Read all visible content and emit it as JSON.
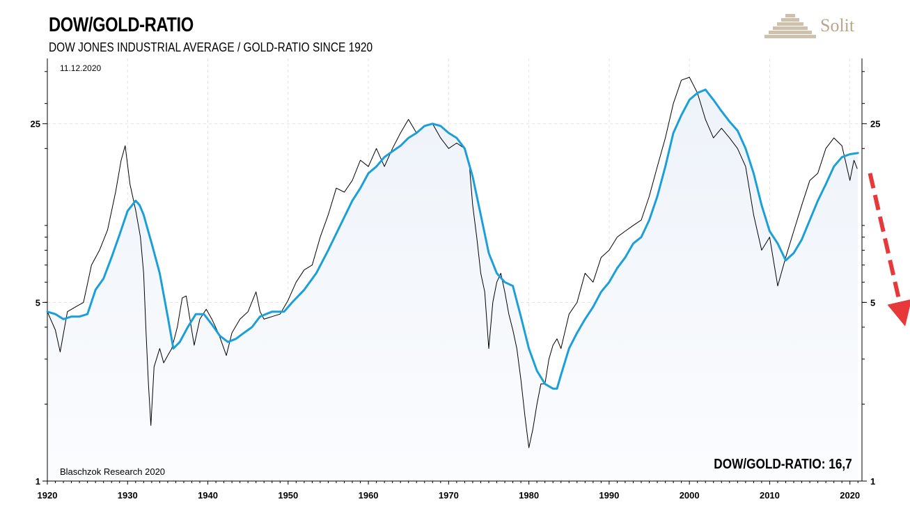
{
  "header": {
    "title": "DOW/GOLD-RATIO",
    "subtitle": "DOW JONES INDUSTRIAL AVERAGE / GOLD-RATIO SINCE 1920",
    "date": "11.12.2020"
  },
  "footer": {
    "source": "Blaschzok Research 2020",
    "readout": "DOW/GOLD-RATIO: 16,7"
  },
  "logo": {
    "text": "Solit",
    "icon": "pyramid-icon",
    "color": "#b9a78a"
  },
  "chart_data": {
    "type": "line",
    "title": "DOW/GOLD-RATIO",
    "xlabel": "",
    "ylabel": "",
    "x_range": [
      1920,
      2021.5
    ],
    "y_scale": "log",
    "ylim": [
      1,
      45
    ],
    "y_ticks": [
      1,
      5,
      25
    ],
    "y_tick_labels": [
      "1",
      "5",
      "25"
    ],
    "x_ticks": [
      1920,
      1930,
      1940,
      1950,
      1960,
      1970,
      1980,
      1990,
      2000,
      2010,
      2020
    ],
    "x_tick_labels": [
      "1920",
      "1930",
      "1940",
      "1950",
      "1960",
      "1970",
      "1980",
      "1990",
      "2000",
      "2010",
      "2020"
    ],
    "grid": true,
    "series": [
      {
        "name": "",
        "style": "ratio",
        "color": "#000000",
        "points": [
          [
            1920,
            4.6
          ],
          [
            1921,
            3.9
          ],
          [
            1921.6,
            3.2
          ],
          [
            1922.5,
            4.6
          ],
          [
            1923.5,
            4.8
          ],
          [
            1924.5,
            5.0
          ],
          [
            1925.5,
            7.0
          ],
          [
            1926.5,
            8.0
          ],
          [
            1927.5,
            9.6
          ],
          [
            1928.5,
            13.5
          ],
          [
            1929.2,
            18
          ],
          [
            1929.7,
            20.5
          ],
          [
            1930.3,
            14.5
          ],
          [
            1931,
            11.5
          ],
          [
            1931.6,
            9.0
          ],
          [
            1932,
            6.5
          ],
          [
            1932.3,
            3.8
          ],
          [
            1932.6,
            2.4
          ],
          [
            1932.9,
            1.65
          ],
          [
            1933.3,
            2.8
          ],
          [
            1934,
            3.3
          ],
          [
            1934.5,
            2.9
          ],
          [
            1935,
            3.1
          ],
          [
            1935.5,
            3.3
          ],
          [
            1936.2,
            4.0
          ],
          [
            1936.8,
            5.2
          ],
          [
            1937.3,
            5.3
          ],
          [
            1938.3,
            3.4
          ],
          [
            1939,
            4.3
          ],
          [
            1939.8,
            4.7
          ],
          [
            1940.5,
            4.3
          ],
          [
            1941.3,
            3.8
          ],
          [
            1942.3,
            3.1
          ],
          [
            1943,
            3.8
          ],
          [
            1944,
            4.3
          ],
          [
            1945,
            4.6
          ],
          [
            1946,
            5.5
          ],
          [
            1946.5,
            4.6
          ],
          [
            1947,
            4.3
          ],
          [
            1948,
            4.4
          ],
          [
            1949,
            4.5
          ],
          [
            1950,
            5.1
          ],
          [
            1951,
            6.0
          ],
          [
            1952,
            6.7
          ],
          [
            1953,
            7.0
          ],
          [
            1954,
            9.0
          ],
          [
            1955,
            11.0
          ],
          [
            1956,
            14.0
          ],
          [
            1957,
            13.5
          ],
          [
            1958,
            15.0
          ],
          [
            1959,
            18.0
          ],
          [
            1960,
            17.0
          ],
          [
            1961,
            20.0
          ],
          [
            1962,
            17.0
          ],
          [
            1963,
            20.0
          ],
          [
            1964,
            23.0
          ],
          [
            1965,
            26.0
          ],
          [
            1966,
            23.0
          ],
          [
            1967,
            24.5
          ],
          [
            1968,
            25.0
          ],
          [
            1969,
            22.0
          ],
          [
            1970,
            20.0
          ],
          [
            1971,
            21.0
          ],
          [
            1972,
            20.0
          ],
          [
            1972.6,
            17.0
          ],
          [
            1973,
            12.0
          ],
          [
            1973.5,
            9.0
          ],
          [
            1974,
            6.5
          ],
          [
            1974.5,
            5.5
          ],
          [
            1975,
            3.3
          ],
          [
            1975.5,
            5.0
          ],
          [
            1976,
            6.0
          ],
          [
            1976.5,
            6.5
          ],
          [
            1977,
            5.5
          ],
          [
            1977.5,
            4.5
          ],
          [
            1978,
            3.9
          ],
          [
            1978.5,
            3.3
          ],
          [
            1979,
            2.5
          ],
          [
            1979.5,
            1.8
          ],
          [
            1980,
            1.35
          ],
          [
            1980.5,
            1.6
          ],
          [
            1981,
            2.0
          ],
          [
            1981.5,
            2.4
          ],
          [
            1982,
            2.4
          ],
          [
            1982.5,
            3.0
          ],
          [
            1983,
            3.4
          ],
          [
            1983.5,
            3.6
          ],
          [
            1984,
            3.3
          ],
          [
            1985,
            4.5
          ],
          [
            1986,
            5.0
          ],
          [
            1987,
            6.5
          ],
          [
            1988,
            6.0
          ],
          [
            1989,
            7.5
          ],
          [
            1990,
            8.0
          ],
          [
            1991,
            9.0
          ],
          [
            1992,
            9.5
          ],
          [
            1993,
            10.0
          ],
          [
            1994,
            10.5
          ],
          [
            1995,
            13.0
          ],
          [
            1996,
            17.0
          ],
          [
            1997,
            22.0
          ],
          [
            1998,
            30.0
          ],
          [
            1999,
            37.0
          ],
          [
            2000,
            38.0
          ],
          [
            2001,
            33.0
          ],
          [
            2002,
            26.0
          ],
          [
            2003,
            22.0
          ],
          [
            2004,
            24.0
          ],
          [
            2005,
            22.0
          ],
          [
            2006,
            20.0
          ],
          [
            2007,
            17.0
          ],
          [
            2008,
            11.0
          ],
          [
            2009,
            8.0
          ],
          [
            2010,
            9.0
          ],
          [
            2011,
            5.8
          ],
          [
            2012,
            7.5
          ],
          [
            2013,
            9.5
          ],
          [
            2014,
            12.0
          ],
          [
            2015,
            15.0
          ],
          [
            2016,
            16.0
          ],
          [
            2017,
            20.0
          ],
          [
            2018,
            22.0
          ],
          [
            2019,
            20.5
          ],
          [
            2020,
            15.0
          ],
          [
            2020.5,
            18.0
          ],
          [
            2020.9,
            16.7
          ]
        ]
      },
      {
        "name": "",
        "style": "smoothed",
        "color": "#1b9fd8",
        "points": [
          [
            1920,
            4.6
          ],
          [
            1921,
            4.5
          ],
          [
            1922,
            4.3
          ],
          [
            1923,
            4.4
          ],
          [
            1924,
            4.4
          ],
          [
            1925,
            4.5
          ],
          [
            1926,
            5.6
          ],
          [
            1927,
            6.2
          ],
          [
            1928,
            7.5
          ],
          [
            1929,
            9.2
          ],
          [
            1930,
            11.4
          ],
          [
            1931,
            12.5
          ],
          [
            1931.5,
            12.0
          ],
          [
            1932,
            11.0
          ],
          [
            1933,
            8.5
          ],
          [
            1934,
            6.5
          ],
          [
            1935,
            4.4
          ],
          [
            1935.7,
            3.3
          ],
          [
            1936.5,
            3.5
          ],
          [
            1937.5,
            4.0
          ],
          [
            1938.5,
            4.5
          ],
          [
            1939.5,
            4.5
          ],
          [
            1940.5,
            4.1
          ],
          [
            1941.5,
            3.7
          ],
          [
            1942.5,
            3.5
          ],
          [
            1943.5,
            3.6
          ],
          [
            1944.5,
            3.8
          ],
          [
            1945.5,
            4.0
          ],
          [
            1946.5,
            4.4
          ],
          [
            1948,
            4.6
          ],
          [
            1949.5,
            4.6
          ],
          [
            1950.5,
            5.0
          ],
          [
            1952,
            5.6
          ],
          [
            1953.5,
            6.5
          ],
          [
            1955,
            8.0
          ],
          [
            1956.5,
            10.0
          ],
          [
            1958,
            12.5
          ],
          [
            1959,
            14.0
          ],
          [
            1960,
            16.0
          ],
          [
            1961,
            17.0
          ],
          [
            1962,
            18.5
          ],
          [
            1963,
            19.5
          ],
          [
            1964,
            20.5
          ],
          [
            1965,
            22.0
          ],
          [
            1966,
            23.0
          ],
          [
            1967,
            24.5
          ],
          [
            1968,
            25.0
          ],
          [
            1969,
            24.5
          ],
          [
            1970,
            23.0
          ],
          [
            1971,
            22.0
          ],
          [
            1972,
            20.0
          ],
          [
            1973,
            15.5
          ],
          [
            1974,
            11.0
          ],
          [
            1975,
            7.8
          ],
          [
            1976,
            6.5
          ],
          [
            1977,
            6.0
          ],
          [
            1978,
            5.8
          ],
          [
            1979,
            4.4
          ],
          [
            1980,
            3.3
          ],
          [
            1981,
            2.7
          ],
          [
            1982,
            2.4
          ],
          [
            1983,
            2.3
          ],
          [
            1983.5,
            2.3
          ],
          [
            1984,
            2.6
          ],
          [
            1985,
            3.3
          ],
          [
            1986,
            3.8
          ],
          [
            1987,
            4.3
          ],
          [
            1988,
            4.8
          ],
          [
            1989,
            5.5
          ],
          [
            1990,
            6.0
          ],
          [
            1991,
            6.8
          ],
          [
            1992,
            7.5
          ],
          [
            1993,
            8.5
          ],
          [
            1994,
            9.0
          ],
          [
            1995,
            10.5
          ],
          [
            1996,
            13.0
          ],
          [
            1997,
            17.0
          ],
          [
            1998,
            23.0
          ],
          [
            1999,
            27.0
          ],
          [
            2000,
            31.0
          ],
          [
            2001,
            33.0
          ],
          [
            2002,
            34.0
          ],
          [
            2003,
            31.0
          ],
          [
            2004,
            28.0
          ],
          [
            2005,
            25.5
          ],
          [
            2006,
            23.5
          ],
          [
            2007,
            20.0
          ],
          [
            2008,
            16.0
          ],
          [
            2009,
            12.0
          ],
          [
            2010,
            9.5
          ],
          [
            2011,
            8.5
          ],
          [
            2012,
            7.3
          ],
          [
            2013,
            7.8
          ],
          [
            2014,
            8.8
          ],
          [
            2015,
            10.5
          ],
          [
            2016,
            12.5
          ],
          [
            2017,
            14.5
          ],
          [
            2018,
            17.0
          ],
          [
            2019,
            18.5
          ],
          [
            2020,
            19.0
          ],
          [
            2021,
            19.2
          ]
        ]
      }
    ],
    "annotation": {
      "type": "arrow",
      "style": "dashed",
      "color": "#e8393a",
      "from": [
        2022.5,
        16
      ],
      "to": [
        2028,
        4.5
      ]
    }
  }
}
